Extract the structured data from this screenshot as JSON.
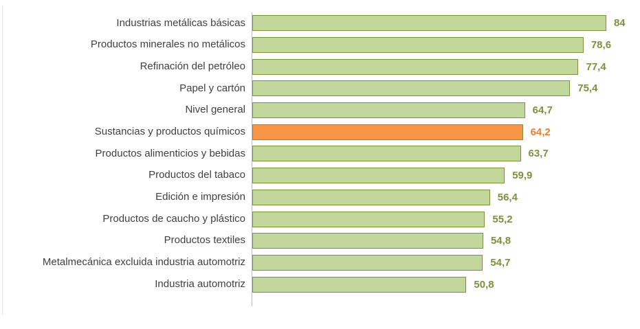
{
  "chart_data": {
    "type": "bar",
    "orientation": "horizontal",
    "title": "",
    "xlabel": "",
    "ylabel": "",
    "grid": false,
    "legend": false,
    "xlim": [
      0,
      92
    ],
    "categories": [
      "Industrias metálicas básicas",
      "Productos minerales no metálicos",
      "Refinación del petróleo",
      "Papel y cartón",
      "Nivel general",
      "Sustancias y productos químicos",
      "Productos alimenticios y bebidas",
      "Productos del tabaco",
      "Edición e impresión",
      "Productos de caucho y plástico",
      "Productos textiles",
      "Metalmecánica excluida industria automotriz",
      "Industria automotriz"
    ],
    "values": [
      84,
      78.6,
      77.4,
      75.4,
      64.7,
      64.2,
      63.7,
      59.9,
      56.4,
      55.2,
      54.8,
      54.7,
      50.8
    ],
    "value_labels": [
      "84",
      "78,6",
      "77,4",
      "75,4",
      "64,7",
      "64,2",
      "63,7",
      "59,9",
      "56,4",
      "55,2",
      "54,8",
      "54,7",
      "50,8"
    ],
    "highlight_index": 5,
    "colors": {
      "bar_fill": "#c3d69b",
      "bar_border": "#77933c",
      "highlight_fill": "#f79646",
      "value_text": "#77933c",
      "highlight_value_text": "#ed7d31",
      "category_text": "#404040",
      "axis_line": "#bfbfbf"
    }
  }
}
